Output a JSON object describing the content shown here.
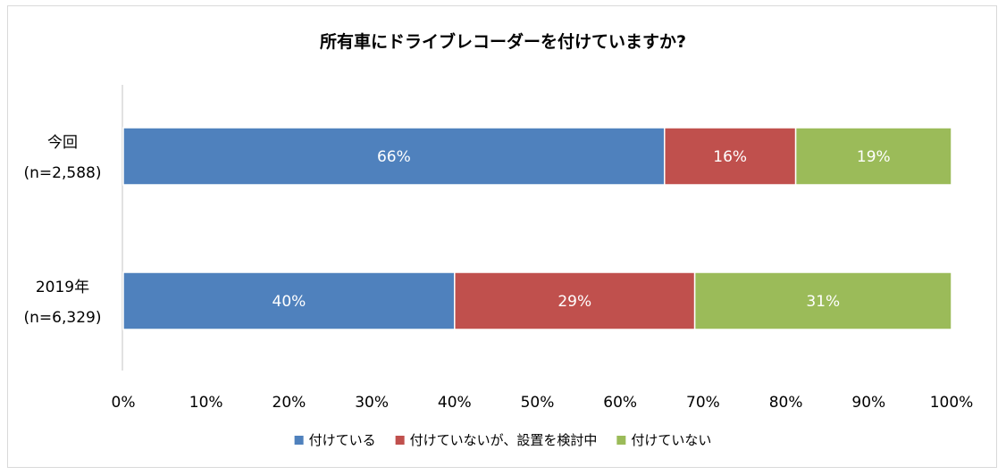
{
  "chart_data": {
    "type": "bar",
    "orientation": "horizontal",
    "stacked": "percent",
    "title": "所有車にドライブレコーダーを付けていますか?",
    "categories": [
      {
        "line1": "今回",
        "line2": "(n=2,588)"
      },
      {
        "line1": "2019年",
        "line2": "(n=6,329)"
      }
    ],
    "series": [
      {
        "name": "付けている",
        "color": "#4f81bd",
        "values": [
          66,
          40
        ],
        "labels": [
          "66%",
          "40%"
        ]
      },
      {
        "name": "付けていないが、設置を検討中",
        "color": "#c0504d",
        "values": [
          16,
          29
        ],
        "labels": [
          "16%",
          "29%"
        ]
      },
      {
        "name": "付けていない",
        "color": "#9bbb59",
        "values": [
          19,
          31
        ],
        "labels": [
          "19%",
          "31%"
        ]
      }
    ],
    "xlim": [
      0,
      100
    ],
    "xticks": [
      "0%",
      "10%",
      "20%",
      "30%",
      "40%",
      "50%",
      "60%",
      "70%",
      "80%",
      "90%",
      "100%"
    ],
    "grid": false,
    "legend_position": "bottom"
  }
}
